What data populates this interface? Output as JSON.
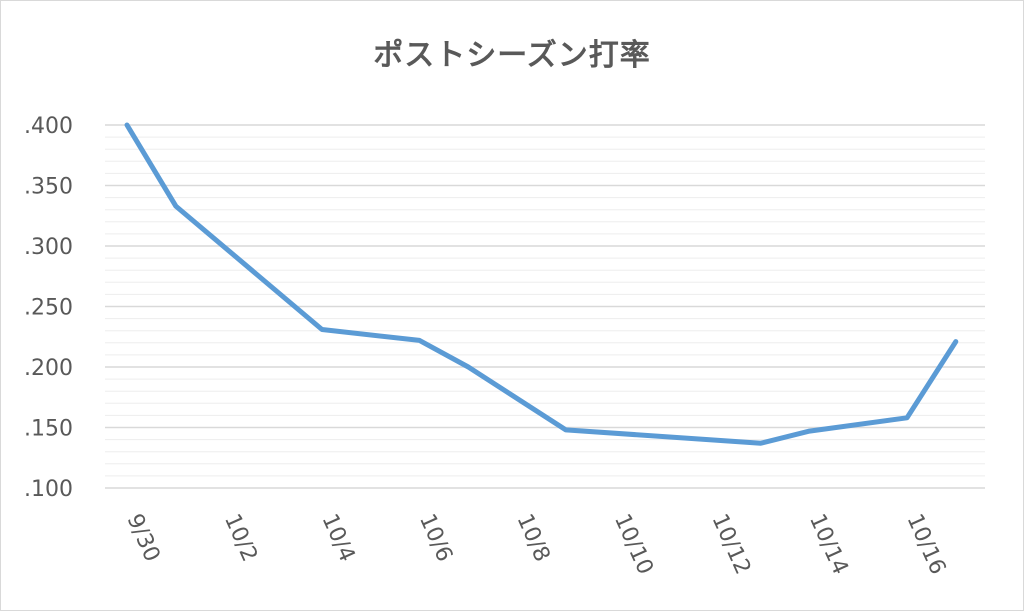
{
  "chart_data": {
    "type": "line",
    "title": "ポストシーズン打率",
    "xlabel": "",
    "ylabel": "",
    "x_tick_labels": [
      "9/30",
      "10/2",
      "10/4",
      "10/6",
      "10/8",
      "10/10",
      "10/12",
      "10/14",
      "10/16"
    ],
    "y_tick_labels": [
      ".400",
      ".350",
      ".300",
      ".250",
      ".200",
      ".150",
      ".100"
    ],
    "ylim": [
      0.1,
      0.4
    ],
    "y_major_step": 0.05,
    "y_minor_step": 0.01,
    "grid": true,
    "legend": "none",
    "series": [
      {
        "color": "#5b9bd5",
        "points": [
          {
            "x": "9/30",
            "y": 0.4
          },
          {
            "x": "10/1",
            "y": 0.333
          },
          {
            "x": "10/4",
            "y": 0.231
          },
          {
            "x": "10/6",
            "y": 0.222
          },
          {
            "x": "10/7",
            "y": 0.2
          },
          {
            "x": "10/9",
            "y": 0.148
          },
          {
            "x": "10/13",
            "y": 0.137
          },
          {
            "x": "10/14",
            "y": 0.147
          },
          {
            "x": "10/16",
            "y": 0.158
          },
          {
            "x": "10/17",
            "y": 0.221
          }
        ]
      }
    ]
  }
}
